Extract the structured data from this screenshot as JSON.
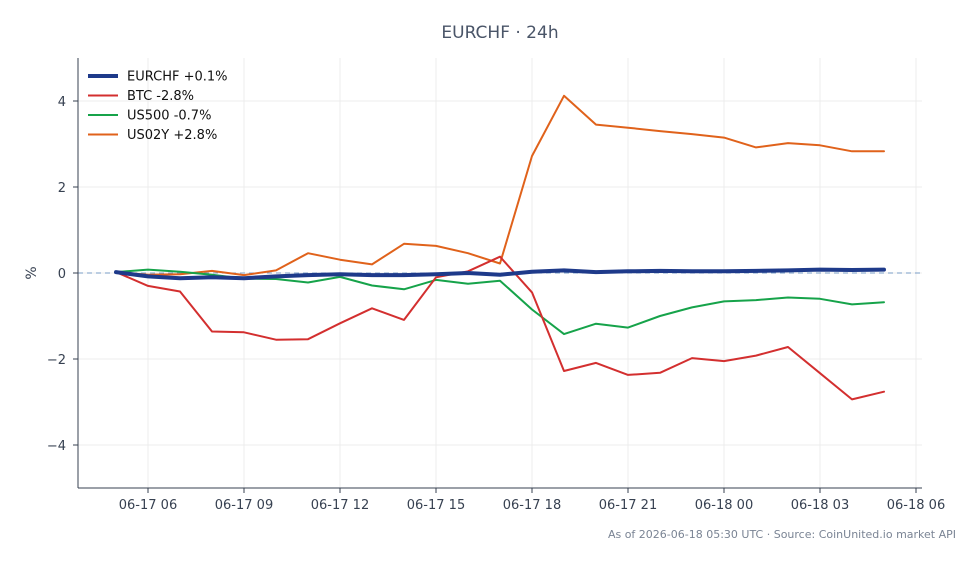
{
  "chart_data": {
    "type": "line",
    "title": "EURCHF · 24h",
    "xlabel": "",
    "ylabel": "%",
    "x": [
      "06-17 05:00",
      "06-17 06:00",
      "06-17 07:00",
      "06-17 08:00",
      "06-17 09:00",
      "06-17 10:00",
      "06-17 11:00",
      "06-17 12:00",
      "06-17 13:00",
      "06-17 14:00",
      "06-17 15:00",
      "06-17 16:00",
      "06-17 17:00",
      "06-17 18:00",
      "06-17 19:00",
      "06-17 20:00",
      "06-17 21:00",
      "06-17 22:00",
      "06-17 23:00",
      "06-18 00:00",
      "06-18 01:00",
      "06-18 02:00",
      "06-18 03:00",
      "06-18 04:00",
      "06-18 05:00"
    ],
    "x_ticks": [
      "06-17 06",
      "06-17 09",
      "06-17 12",
      "06-17 15",
      "06-17 18",
      "06-17 21",
      "06-18 00",
      "06-18 03",
      "06-18 06"
    ],
    "y_ticks": [
      -4,
      -2,
      0,
      2,
      4
    ],
    "ylim": [
      -5,
      5
    ],
    "grid": true,
    "legend": "top-left",
    "zero_line": true,
    "series": [
      {
        "name": "EURCHF +0.1%",
        "color": "#1e3a8a",
        "width": 4,
        "values": [
          0.02,
          -0.08,
          -0.12,
          -0.1,
          -0.12,
          -0.08,
          -0.05,
          -0.03,
          -0.05,
          -0.05,
          -0.03,
          0.0,
          -0.04,
          0.03,
          0.06,
          0.02,
          0.04,
          0.05,
          0.04,
          0.04,
          0.05,
          0.06,
          0.08,
          0.07,
          0.08
        ]
      },
      {
        "name": "BTC -2.8%",
        "color": "#d32f2f",
        "width": 2,
        "values": [
          0.02,
          -0.3,
          -0.43,
          -1.36,
          -1.38,
          -1.55,
          -1.54,
          -1.17,
          -0.82,
          -1.09,
          -0.1,
          0.04,
          0.38,
          -0.45,
          -2.28,
          -2.09,
          -2.37,
          -2.32,
          -1.98,
          -2.05,
          -1.92,
          -1.72,
          -2.33,
          -2.94,
          -2.76
        ]
      },
      {
        "name": "US500 -0.7%",
        "color": "#16a34a",
        "width": 2,
        "values": [
          0.02,
          0.08,
          0.03,
          -0.04,
          -0.13,
          -0.14,
          -0.22,
          -0.09,
          -0.29,
          -0.38,
          -0.16,
          -0.25,
          -0.18,
          -0.85,
          -1.42,
          -1.18,
          -1.27,
          -1.0,
          -0.8,
          -0.66,
          -0.63,
          -0.57,
          -0.6,
          -0.73,
          -0.68
        ]
      },
      {
        "name": "US02Y +2.8%",
        "color": "#e0621b",
        "width": 2,
        "values": [
          0.02,
          -0.04,
          -0.03,
          0.05,
          -0.05,
          0.06,
          0.46,
          0.31,
          0.2,
          0.68,
          0.63,
          0.46,
          0.22,
          2.72,
          4.12,
          3.45,
          3.38,
          3.3,
          3.23,
          3.15,
          2.92,
          3.02,
          2.97,
          2.83,
          2.83
        ]
      }
    ]
  },
  "footer": "As of 2026-06-18 05:30 UTC · Source: CoinUnited.io market API"
}
